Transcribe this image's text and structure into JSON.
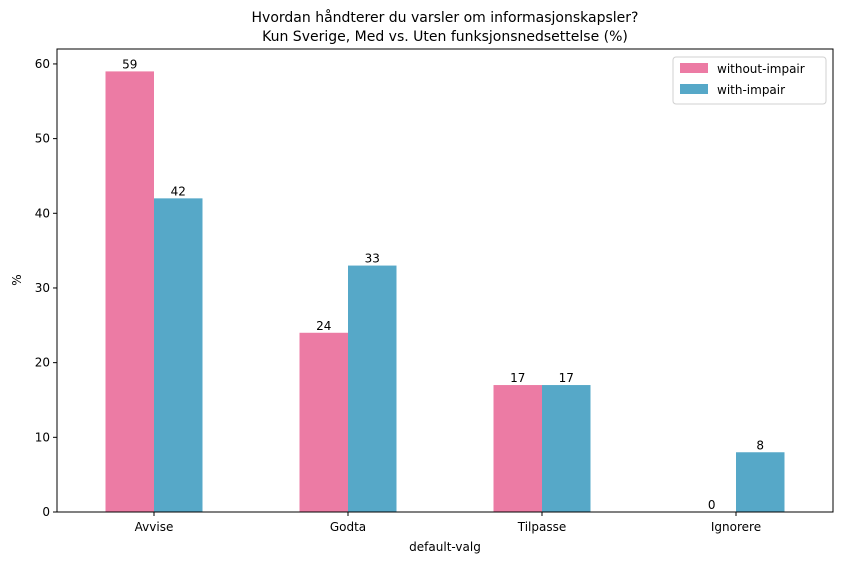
{
  "chart_data": {
    "type": "bar",
    "title": "Hvordan håndterer du varsler om informasjonskapsler?",
    "subtitle": "Kun Sverige, Med vs. Uten funksjonsnedsettelse (%)",
    "xlabel": "default-valg",
    "ylabel": "%",
    "categories": [
      "Avvise",
      "Godta",
      "Tilpasse",
      "Ignorere"
    ],
    "series": [
      {
        "name": "without-impair",
        "color": "#ec7ba4",
        "values": [
          59,
          24,
          17,
          0
        ]
      },
      {
        "name": "with-impair",
        "color": "#56a8c8",
        "values": [
          42,
          33,
          17,
          8
        ]
      }
    ],
    "ylim": [
      0,
      62
    ],
    "yticks": [
      0,
      10,
      20,
      30,
      40,
      50,
      60
    ],
    "grid": false,
    "legend_position": "top-right"
  }
}
